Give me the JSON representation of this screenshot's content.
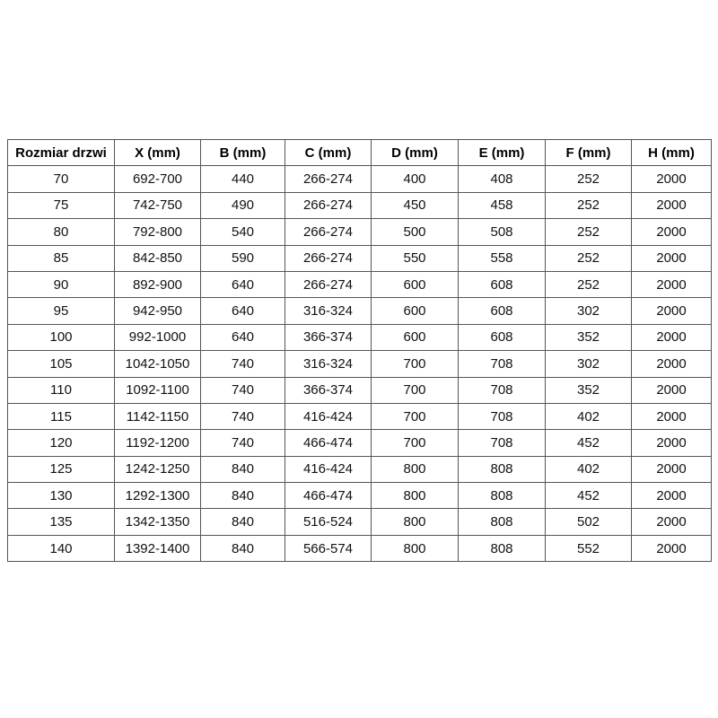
{
  "colors": {
    "background": "#ffffff",
    "table_border": "#555555",
    "header_text": "#000000",
    "cell_text": "#111111"
  },
  "chart_data": {
    "type": "table",
    "title": "",
    "columns": [
      "Rozmiar drzwi",
      "X (mm)",
      "B (mm)",
      "C (mm)",
      "D (mm)",
      "E (mm)",
      "F (mm)",
      "H (mm)"
    ],
    "rows": [
      [
        "70",
        "692-700",
        "440",
        "266-274",
        "400",
        "408",
        "252",
        "2000"
      ],
      [
        "75",
        "742-750",
        "490",
        "266-274",
        "450",
        "458",
        "252",
        "2000"
      ],
      [
        "80",
        "792-800",
        "540",
        "266-274",
        "500",
        "508",
        "252",
        "2000"
      ],
      [
        "85",
        "842-850",
        "590",
        "266-274",
        "550",
        "558",
        "252",
        "2000"
      ],
      [
        "90",
        "892-900",
        "640",
        "266-274",
        "600",
        "608",
        "252",
        "2000"
      ],
      [
        "95",
        "942-950",
        "640",
        "316-324",
        "600",
        "608",
        "302",
        "2000"
      ],
      [
        "100",
        "992-1000",
        "640",
        "366-374",
        "600",
        "608",
        "352",
        "2000"
      ],
      [
        "105",
        "1042-1050",
        "740",
        "316-324",
        "700",
        "708",
        "302",
        "2000"
      ],
      [
        "110",
        "1092-1100",
        "740",
        "366-374",
        "700",
        "708",
        "352",
        "2000"
      ],
      [
        "115",
        "1142-1150",
        "740",
        "416-424",
        "700",
        "708",
        "402",
        "2000"
      ],
      [
        "120",
        "1192-1200",
        "740",
        "466-474",
        "700",
        "708",
        "452",
        "2000"
      ],
      [
        "125",
        "1242-1250",
        "840",
        "416-424",
        "800",
        "808",
        "402",
        "2000"
      ],
      [
        "130",
        "1292-1300",
        "840",
        "466-474",
        "800",
        "808",
        "452",
        "2000"
      ],
      [
        "135",
        "1342-1350",
        "840",
        "516-524",
        "800",
        "808",
        "502",
        "2000"
      ],
      [
        "140",
        "1392-1400",
        "840",
        "566-574",
        "800",
        "808",
        "552",
        "2000"
      ]
    ],
    "layout_hints": {
      "grid": true,
      "header_bold": true,
      "text_align": "center",
      "table_position": "horizontally centered, upper-middle of page"
    }
  }
}
